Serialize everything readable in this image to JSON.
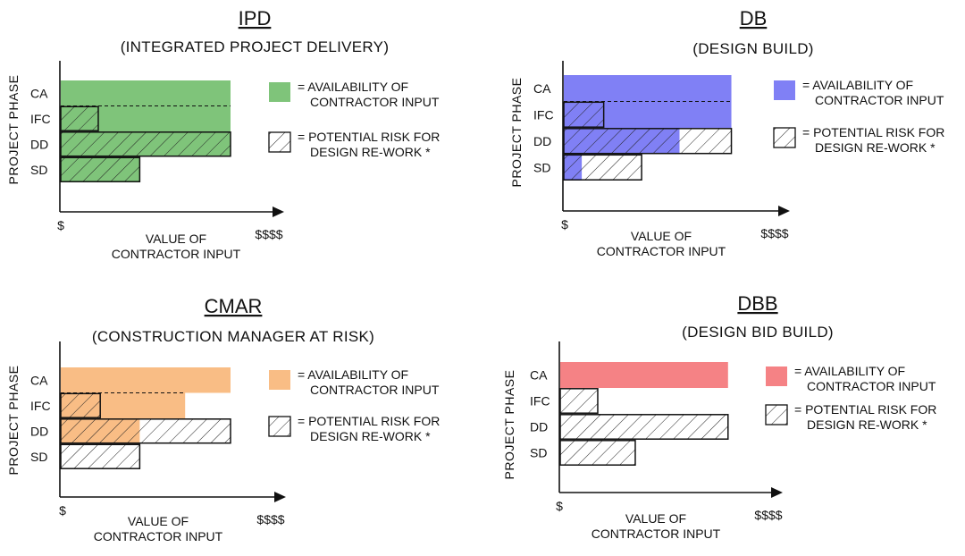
{
  "chart_data": [
    {
      "type": "bar",
      "orientation": "horizontal",
      "title": "IPD",
      "subtitle": "(INTEGRATED PROJECT DELIVERY)",
      "ylabel": "PROJECT PHASE",
      "xlabel": [
        "VALUE OF",
        "CONTRACTOR INPUT"
      ],
      "x_start_label": "$",
      "x_end_label": "$$$$",
      "categories": [
        "CA",
        "IFC",
        "DD",
        "SD"
      ],
      "xlim": [
        0,
        100
      ],
      "series": [
        {
          "name": "= AVAILABILITY OF CONTRACTOR INPUT",
          "values": [
            86,
            86,
            86,
            40
          ]
        },
        {
          "name": "= POTENTIAL RISK FOR DESIGN RE-WORK *",
          "values": [
            0,
            19,
            86,
            40
          ]
        }
      ],
      "annotations": [
        "dashed line at CA/IFC boundary"
      ],
      "colors": {
        "availability": "#7fc47a",
        "risk_hatch": "#222222"
      },
      "legend": {
        "availability": [
          "= AVAILABILITY OF",
          "CONTRACTOR INPUT"
        ],
        "risk": [
          "= POTENTIAL RISK FOR",
          "DESIGN RE-WORK *"
        ]
      },
      "legend_position": "right"
    },
    {
      "type": "bar",
      "orientation": "horizontal",
      "title": "DB",
      "subtitle": "(DESIGN BUILD)",
      "ylabel": "PROJECT PHASE",
      "xlabel": [
        "VALUE OF",
        "CONTRACTOR INPUT"
      ],
      "x_start_label": "$",
      "x_end_label": "$$$$",
      "categories": [
        "CA",
        "IFC",
        "DD",
        "SD"
      ],
      "xlim": [
        0,
        100
      ],
      "series": [
        {
          "name": "= AVAILABILITY OF CONTRACTOR INPUT",
          "values": [
            84,
            84,
            58,
            9
          ]
        },
        {
          "name": "= POTENTIAL RISK FOR DESIGN RE-WORK *",
          "values": [
            0,
            20,
            84,
            39
          ]
        }
      ],
      "annotations": [
        "dashed line at CA/IFC boundary"
      ],
      "colors": {
        "availability": "#8080f5",
        "risk_hatch": "#222222"
      },
      "legend": {
        "availability": [
          "= AVAILABILITY OF",
          "CONTRACTOR INPUT"
        ],
        "risk": [
          "= POTENTIAL RISK FOR",
          "DESIGN RE-WORK *"
        ]
      },
      "legend_position": "right"
    },
    {
      "type": "bar",
      "orientation": "horizontal",
      "title": "CMAR",
      "subtitle": "(CONSTRUCTION MANAGER AT RISK)",
      "ylabel": "PROJECT PHASE",
      "xlabel": [
        "VALUE OF",
        "CONTRACTOR INPUT"
      ],
      "x_start_label": "$",
      "x_end_label": "$$$$",
      "categories": [
        "CA",
        "IFC",
        "DD",
        "SD"
      ],
      "xlim": [
        0,
        100
      ],
      "series": [
        {
          "name": "= AVAILABILITY OF CONTRACTOR INPUT",
          "values": [
            86,
            63,
            40,
            0
          ]
        },
        {
          "name": "= POTENTIAL RISK FOR DESIGN RE-WORK *",
          "values": [
            0,
            20,
            86,
            40
          ]
        }
      ],
      "annotations": [
        "dashed line at CA/IFC boundary"
      ],
      "colors": {
        "availability": "#f9bd85",
        "risk_hatch": "#222222"
      },
      "legend": {
        "availability": [
          "= AVAILABILITY OF",
          "CONTRACTOR INPUT"
        ],
        "risk": [
          "= POTENTIAL RISK FOR",
          "DESIGN RE-WORK *"
        ]
      },
      "legend_position": "right"
    },
    {
      "type": "bar",
      "orientation": "horizontal",
      "title": "DBB",
      "subtitle": "(DESIGN BID BUILD)",
      "ylabel": "PROJECT PHASE",
      "xlabel": [
        "VALUE OF",
        "CONTRACTOR INPUT"
      ],
      "x_start_label": "$",
      "x_end_label": "$$$$",
      "categories": [
        "CA",
        "IFC",
        "DD",
        "SD"
      ],
      "xlim": [
        0,
        100
      ],
      "series": [
        {
          "name": "= AVAILABILITY OF CONTRACTOR INPUT",
          "values": [
            85,
            0,
            0,
            0
          ]
        },
        {
          "name": "= POTENTIAL RISK FOR DESIGN RE-WORK *",
          "values": [
            0,
            19,
            85,
            38
          ]
        }
      ],
      "annotations": [],
      "colors": {
        "availability": "#f58285",
        "risk_hatch": "#222222"
      },
      "legend": {
        "availability": [
          "= AVAILABILITY OF",
          "CONTRACTOR INPUT"
        ],
        "risk": [
          "= POTENTIAL RISK FOR",
          "DESIGN RE-WORK *"
        ]
      },
      "legend_position": "right"
    }
  ]
}
